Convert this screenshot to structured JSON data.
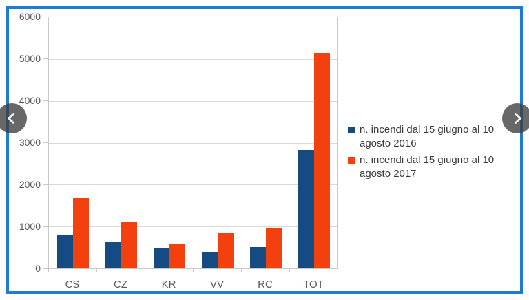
{
  "frame": {
    "border_color": "#1e7cd0",
    "background": "#ffffff"
  },
  "nav": {
    "prev_icon": "chevron-left",
    "next_icon": "chevron-right",
    "button_color": "rgba(62,62,62,0.78)"
  },
  "chart_data": {
    "type": "bar",
    "title": "",
    "categories": [
      "CS",
      "CZ",
      "KR",
      "VV",
      "RC",
      "TOT"
    ],
    "series": [
      {
        "name": "n. incendi dal 15 giugno al 10 agosto 2016",
        "color": "#164a82",
        "values": [
          790,
          620,
          490,
          400,
          510,
          2820
        ]
      },
      {
        "name": "n. incendi dal 15 giugno al 10 agosto 2017",
        "color": "#f2400e",
        "values": [
          1680,
          1100,
          575,
          850,
          950,
          5150
        ]
      }
    ],
    "ylim": [
      0,
      6000
    ],
    "yticks": [
      0,
      1000,
      2000,
      3000,
      4000,
      5000,
      6000
    ],
    "grid": true,
    "legend_position": "right",
    "colors": {
      "gridline": "#d9d9d9",
      "axis": "#c9c9c9",
      "tick_label": "#595959",
      "legend_text": "#3a3a3a"
    }
  }
}
